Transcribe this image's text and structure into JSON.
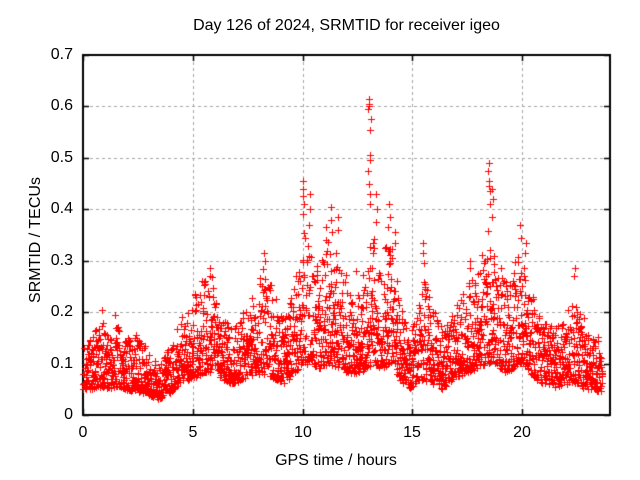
{
  "chart_data": {
    "type": "scatter",
    "title": "Day 126 of 2024, SRMTID for receiver igeo",
    "xlabel": "GPS time / hours",
    "ylabel": "SRMTID / TECUs",
    "xlim": [
      0,
      24
    ],
    "ylim": [
      0,
      0.7
    ],
    "xticks": [
      {
        "v": 0,
        "label": "0"
      },
      {
        "v": 5,
        "label": "5"
      },
      {
        "v": 10,
        "label": "10"
      },
      {
        "v": 15,
        "label": "15"
      },
      {
        "v": 20,
        "label": "20"
      }
    ],
    "yticks": [
      {
        "v": 0,
        "label": "0"
      },
      {
        "v": 0.1,
        "label": "0.1"
      },
      {
        "v": 0.2,
        "label": "0.2"
      },
      {
        "v": 0.3,
        "label": "0.3"
      },
      {
        "v": 0.4,
        "label": "0.4"
      },
      {
        "v": 0.5,
        "label": "0.5"
      },
      {
        "v": 0.6,
        "label": "0.6"
      },
      {
        "v": 0.7,
        "label": "0.7"
      }
    ],
    "grid": true,
    "legend": false,
    "marker": "+",
    "marker_color": "#ff0000",
    "axis_color": "#000000",
    "grid_color": "#a6a6a6",
    "background": "#ffffff",
    "data_time_range_hours": [
      0,
      23.65
    ],
    "approx_point_count": 2600,
    "band_envelope": {
      "description": "Dense scatter band read off the plot: piecewise-linear envelope [t_hours, band_low_TECU, band_high_TECU]",
      "points": [
        [
          0.0,
          0.05,
          0.13
        ],
        [
          0.4,
          0.05,
          0.15
        ],
        [
          0.9,
          0.055,
          0.2
        ],
        [
          1.2,
          0.05,
          0.14
        ],
        [
          1.5,
          0.055,
          0.19
        ],
        [
          1.9,
          0.05,
          0.15
        ],
        [
          2.4,
          0.045,
          0.16
        ],
        [
          2.9,
          0.04,
          0.13
        ],
        [
          3.4,
          0.03,
          0.1
        ],
        [
          3.9,
          0.04,
          0.13
        ],
        [
          4.4,
          0.06,
          0.18
        ],
        [
          4.9,
          0.07,
          0.22
        ],
        [
          5.4,
          0.08,
          0.26
        ],
        [
          5.9,
          0.08,
          0.27
        ],
        [
          6.3,
          0.07,
          0.19
        ],
        [
          6.8,
          0.06,
          0.17
        ],
        [
          7.3,
          0.07,
          0.2
        ],
        [
          7.8,
          0.08,
          0.24
        ],
        [
          8.3,
          0.08,
          0.3
        ],
        [
          8.7,
          0.07,
          0.25
        ],
        [
          9.2,
          0.06,
          0.19
        ],
        [
          9.6,
          0.08,
          0.25
        ],
        [
          10.0,
          0.1,
          0.36
        ],
        [
          10.4,
          0.1,
          0.33
        ],
        [
          10.8,
          0.09,
          0.29
        ],
        [
          11.2,
          0.1,
          0.35
        ],
        [
          11.7,
          0.09,
          0.31
        ],
        [
          12.1,
          0.08,
          0.26
        ],
        [
          12.5,
          0.08,
          0.23
        ],
        [
          12.9,
          0.09,
          0.31
        ],
        [
          13.2,
          0.1,
          0.36
        ],
        [
          13.6,
          0.09,
          0.31
        ],
        [
          14.0,
          0.1,
          0.35
        ],
        [
          14.4,
          0.07,
          0.23
        ],
        [
          14.8,
          0.05,
          0.16
        ],
        [
          15.2,
          0.06,
          0.19
        ],
        [
          15.5,
          0.07,
          0.27
        ],
        [
          15.9,
          0.06,
          0.21
        ],
        [
          16.4,
          0.05,
          0.17
        ],
        [
          16.9,
          0.07,
          0.2
        ],
        [
          17.4,
          0.08,
          0.25
        ],
        [
          17.9,
          0.09,
          0.28
        ],
        [
          18.4,
          0.1,
          0.36
        ],
        [
          18.8,
          0.1,
          0.33
        ],
        [
          19.3,
          0.08,
          0.27
        ],
        [
          19.8,
          0.1,
          0.31
        ],
        [
          20.2,
          0.09,
          0.29
        ],
        [
          20.6,
          0.07,
          0.21
        ],
        [
          21.0,
          0.06,
          0.18
        ],
        [
          21.5,
          0.055,
          0.17
        ],
        [
          22.0,
          0.06,
          0.2
        ],
        [
          22.4,
          0.06,
          0.22
        ],
        [
          22.9,
          0.05,
          0.18
        ],
        [
          23.3,
          0.05,
          0.16
        ],
        [
          23.65,
          0.04,
          0.14
        ]
      ]
    },
    "outlier_columns": [
      [
        0.9,
        [
          0.205
        ]
      ],
      [
        1.5,
        [
          0.195
        ]
      ],
      [
        5.8,
        [
          0.285,
          0.27
        ]
      ],
      [
        8.3,
        [
          0.315,
          0.3
        ]
      ],
      [
        10.05,
        [
          0.455,
          0.44,
          0.425,
          0.41,
          0.39
        ]
      ],
      [
        10.3,
        [
          0.43,
          0.4,
          0.37
        ]
      ],
      [
        11.05,
        [
          0.365,
          0.34
        ]
      ],
      [
        11.3,
        [
          0.405,
          0.38,
          0.355
        ]
      ],
      [
        11.65,
        [
          0.385,
          0.36
        ]
      ],
      [
        12.4,
        [
          0.28
        ]
      ],
      [
        13.05,
        [
          0.615,
          0.605,
          0.6,
          0.595,
          0.575,
          0.555,
          0.505,
          0.495,
          0.475,
          0.45,
          0.43,
          0.41
        ]
      ],
      [
        13.35,
        [
          0.43,
          0.4,
          0.375
        ]
      ],
      [
        13.95,
        [
          0.41,
          0.385,
          0.365
        ]
      ],
      [
        14.2,
        [
          0.355,
          0.335
        ]
      ],
      [
        15.55,
        [
          0.335,
          0.315,
          0.295
        ]
      ],
      [
        17.6,
        [
          0.3,
          0.285
        ]
      ],
      [
        18.5,
        [
          0.49,
          0.475,
          0.455,
          0.445,
          0.435,
          0.41
        ]
      ],
      [
        18.65,
        [
          0.44,
          0.42,
          0.385
        ]
      ],
      [
        19.9,
        [
          0.37,
          0.345
        ]
      ],
      [
        20.15,
        [
          0.335,
          0.315
        ]
      ],
      [
        22.35,
        [
          0.285,
          0.27
        ]
      ]
    ]
  }
}
